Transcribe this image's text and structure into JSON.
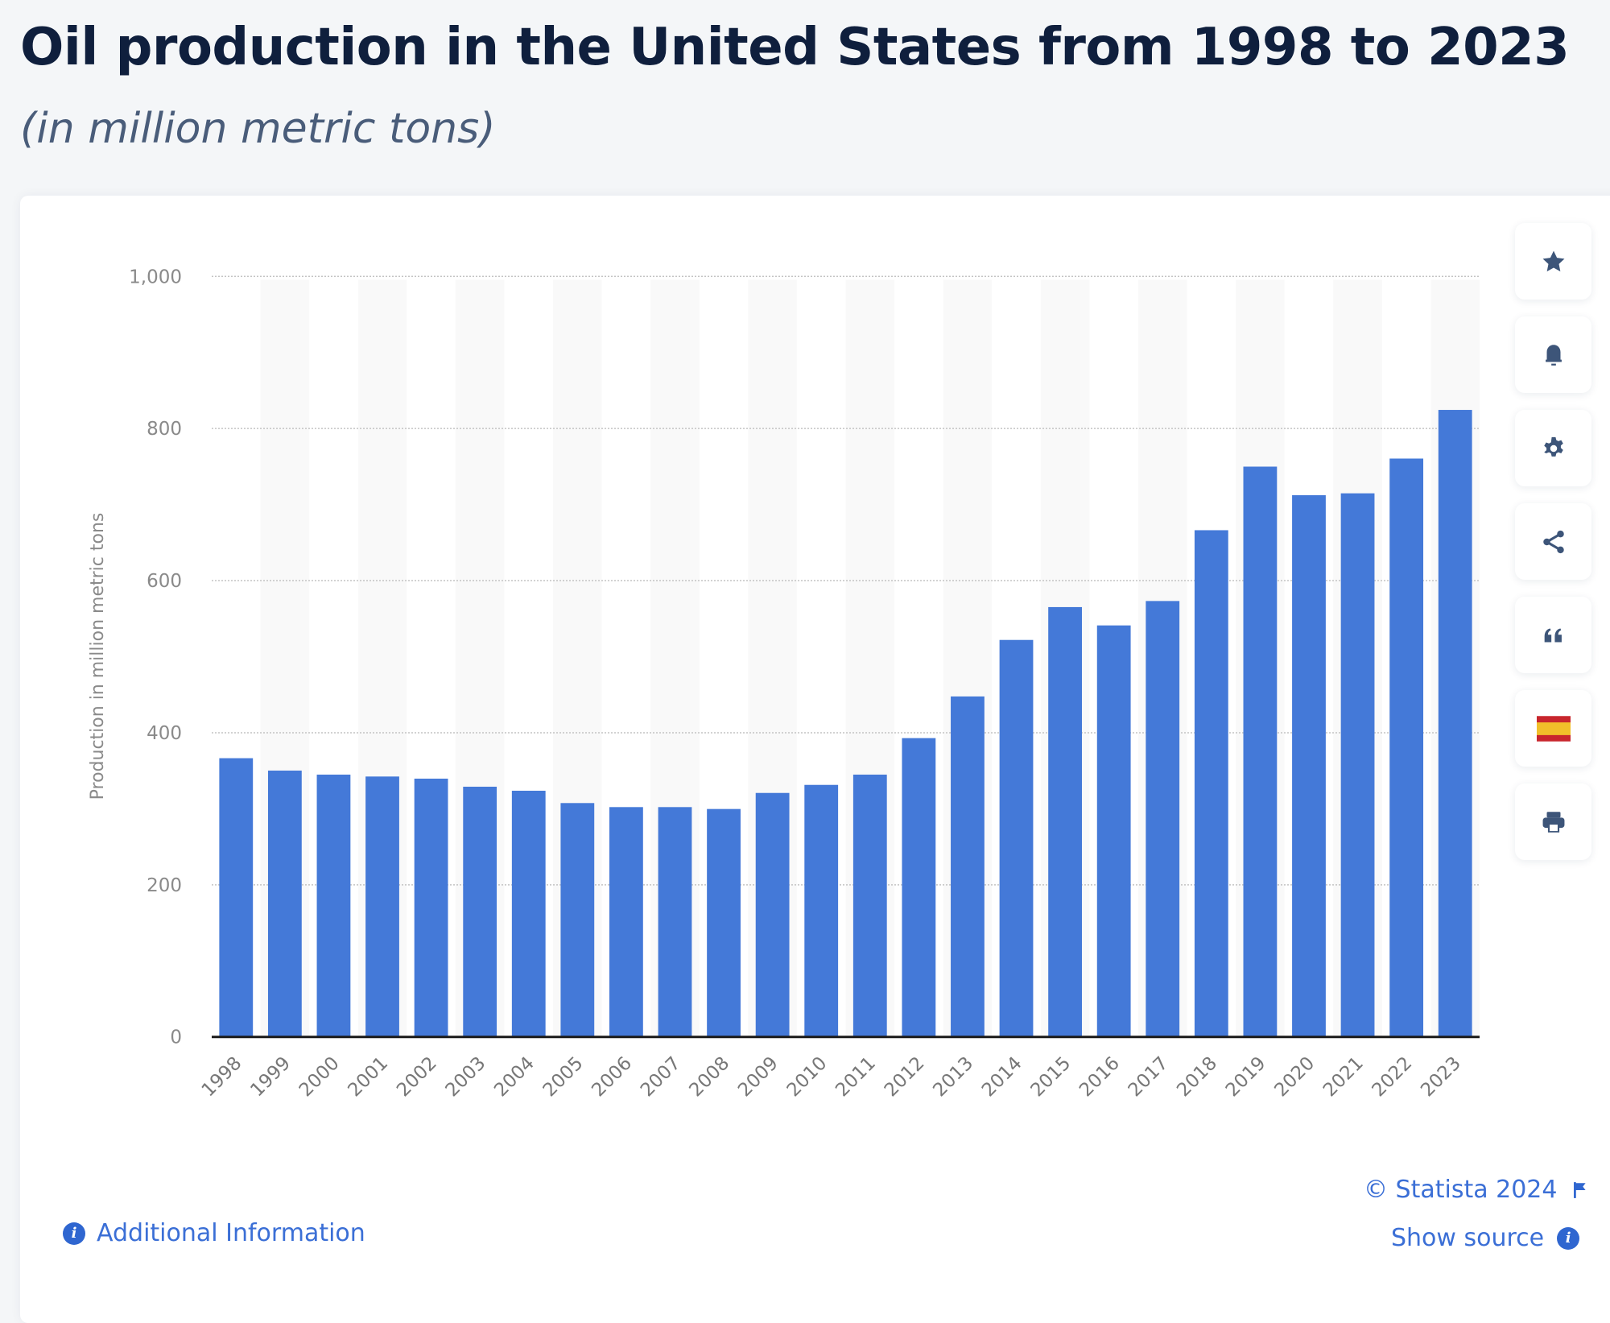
{
  "header": {
    "title": "Oil production in the United States from 1998 to 2023",
    "subtitle": "(in million metric tons)"
  },
  "toolbar": {
    "buttons": [
      {
        "name": "favorite",
        "icon": "star-icon"
      },
      {
        "name": "notification",
        "icon": "bell-icon"
      },
      {
        "name": "settings",
        "icon": "gear-icon"
      },
      {
        "name": "share",
        "icon": "share-icon"
      },
      {
        "name": "cite",
        "icon": "quote-icon"
      },
      {
        "name": "language",
        "icon": "spain-flag-icon"
      },
      {
        "name": "print",
        "icon": "printer-icon"
      }
    ]
  },
  "footer": {
    "additional_info": "Additional Information",
    "copyright": "© Statista 2024",
    "show_source": "Show source"
  },
  "colors": {
    "bar": "#4479d8",
    "title": "#0f1f3d",
    "link": "#3b6fd6",
    "icon": "#3d5579"
  },
  "chart_data": {
    "type": "bar",
    "title": "Oil production in the United States from 1998 to 2023",
    "subtitle": "(in million metric tons)",
    "xlabel": "",
    "ylabel": "Production in million metric tons",
    "categories": [
      "1998",
      "1999",
      "2000",
      "2001",
      "2002",
      "2003",
      "2004",
      "2005",
      "2006",
      "2007",
      "2008",
      "2009",
      "2010",
      "2011",
      "2012",
      "2013",
      "2014",
      "2015",
      "2016",
      "2017",
      "2018",
      "2019",
      "2020",
      "2021",
      "2022",
      "2023"
    ],
    "values": [
      366.5,
      350.2,
      344.9,
      342.4,
      339.6,
      329.0,
      323.7,
      307.5,
      302.2,
      302.2,
      299.7,
      320.8,
      331.4,
      344.9,
      392.9,
      447.7,
      522.0,
      565.2,
      541.1,
      573.2,
      666.3,
      749.9,
      712.3,
      714.8,
      760.5,
      824.5
    ],
    "ylim": [
      0,
      1000
    ],
    "yticks": [
      0,
      200,
      400,
      600,
      800,
      1000
    ],
    "ytick_labels": [
      "0",
      "200",
      "400",
      "600",
      "800",
      "1,000"
    ],
    "grid": true,
    "legend": "none"
  }
}
